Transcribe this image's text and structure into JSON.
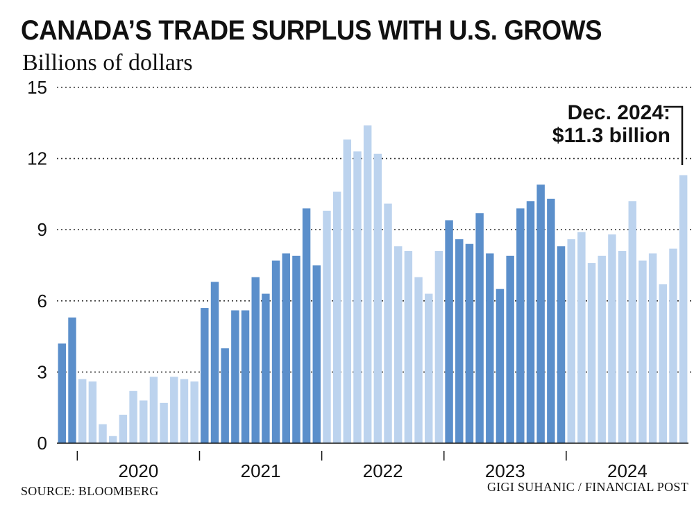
{
  "title": "CANADA’S TRADE SURPLUS WITH U.S. GROWS",
  "subtitle": "Billions of dollars",
  "source": "SOURCE: BLOOMBERG",
  "credit": "GIGI SUHANIC / FINANCIAL POST",
  "colors": {
    "dark": "#5b8fcb",
    "light": "#bcd3ee",
    "grid": "#333333"
  },
  "chart_data": {
    "type": "bar",
    "ylim": [
      0,
      15
    ],
    "yticks": [
      "0",
      "3",
      "6",
      "9",
      "12",
      "15"
    ],
    "grid": "dotted horizontal",
    "years": [
      "2020",
      "2021",
      "2022",
      "2023",
      "2024"
    ],
    "values": [
      4.2,
      5.3,
      2.7,
      2.6,
      0.8,
      0.3,
      1.2,
      2.2,
      1.8,
      2.8,
      1.7,
      2.8,
      2.7,
      2.6,
      5.7,
      6.8,
      4.0,
      5.6,
      5.6,
      7.0,
      6.3,
      7.7,
      8.0,
      7.9,
      9.9,
      7.5,
      9.8,
      10.6,
      12.8,
      12.3,
      13.4,
      12.2,
      10.1,
      8.3,
      8.1,
      7.0,
      6.3,
      8.1,
      9.4,
      8.6,
      8.4,
      9.7,
      8.0,
      6.5,
      7.9,
      9.9,
      10.2,
      10.9,
      10.3,
      8.3,
      8.6,
      8.9,
      7.6,
      7.9,
      8.8,
      8.1,
      10.2,
      7.7,
      8.0,
      6.7,
      8.2,
      11.3
    ],
    "annotation": {
      "line1": "Dec. 2024:",
      "line2": "$11.3 billion"
    }
  }
}
